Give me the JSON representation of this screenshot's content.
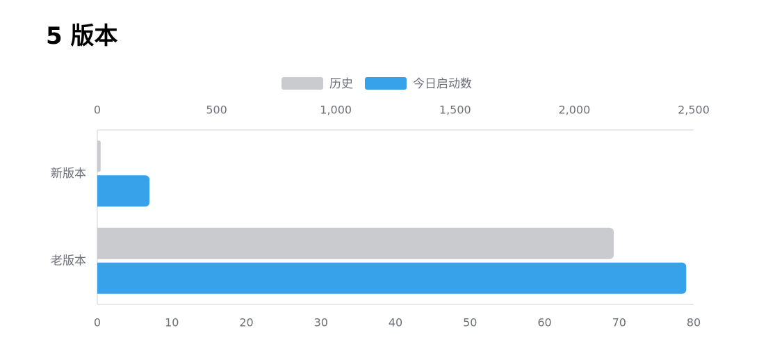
{
  "page": {
    "title": "5 版本"
  },
  "chart_data": {
    "type": "bar",
    "orientation": "horizontal",
    "categories": [
      "新版本",
      "老版本"
    ],
    "series": [
      {
        "name": "历史",
        "color": "#CACBCF",
        "axis": "top",
        "values": [
          14,
          2165
        ]
      },
      {
        "name": "今日启动数",
        "color": "#37A2EA",
        "axis": "bottom",
        "values": [
          7,
          79
        ]
      }
    ],
    "x_axis_top": {
      "min": 0,
      "max": 2500,
      "ticks": [
        0,
        500,
        1000,
        1500,
        2000,
        2500
      ],
      "tick_labels": [
        "0",
        "500",
        "1,000",
        "1,500",
        "2,000",
        "2,500"
      ]
    },
    "x_axis_bottom": {
      "min": 0,
      "max": 80,
      "ticks": [
        0,
        10,
        20,
        30,
        40,
        50,
        60,
        70,
        80
      ],
      "tick_labels": [
        "0",
        "10",
        "20",
        "30",
        "40",
        "50",
        "60",
        "70",
        "80"
      ]
    },
    "legend": {
      "placement": "top-center",
      "items": [
        "历史",
        "今日启动数"
      ]
    },
    "grid": false
  }
}
